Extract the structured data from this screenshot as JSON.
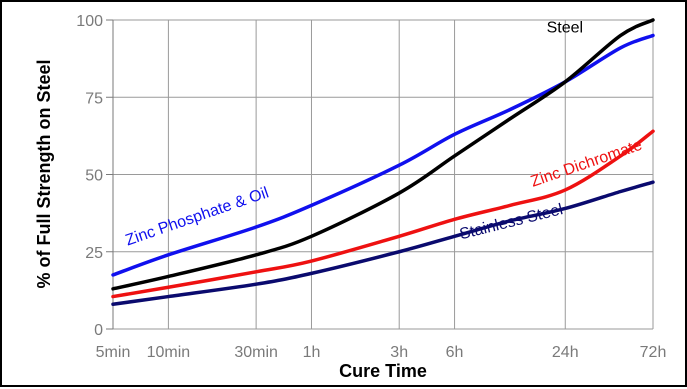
{
  "chart_data": {
    "type": "line",
    "title": "",
    "xlabel": "Cure Time",
    "ylabel": "% of Full Strength on Steel",
    "x_scale": "log",
    "x_unit": "hours",
    "x_ticks": [
      {
        "label": "5min",
        "value": 0.0833
      },
      {
        "label": "10min",
        "value": 0.1667
      },
      {
        "label": "30min",
        "value": 0.5
      },
      {
        "label": "1h",
        "value": 1
      },
      {
        "label": "3h",
        "value": 3
      },
      {
        "label": "6h",
        "value": 6
      },
      {
        "label": "24h",
        "value": 24
      },
      {
        "label": "72h",
        "value": 72
      }
    ],
    "xlim": [
      0.0833,
      72
    ],
    "y_ticks": [
      0,
      25,
      50,
      75,
      100
    ],
    "ylim": [
      0,
      100
    ],
    "grid": true,
    "legend": "none",
    "series": [
      {
        "name": "Steel",
        "color": "#000000",
        "points": [
          [
            0.0833,
            13
          ],
          [
            0.1667,
            17
          ],
          [
            0.5,
            24
          ],
          [
            1,
            30
          ],
          [
            3,
            44
          ],
          [
            6,
            56
          ],
          [
            12,
            68
          ],
          [
            24,
            80
          ],
          [
            48,
            95
          ],
          [
            72,
            100
          ]
        ]
      },
      {
        "name": "Zinc Phosphate & Oil",
        "color": "#1010ee",
        "points": [
          [
            0.0833,
            17.5
          ],
          [
            0.1667,
            24
          ],
          [
            0.5,
            33
          ],
          [
            1,
            40
          ],
          [
            3,
            53
          ],
          [
            6,
            63
          ],
          [
            12,
            71
          ],
          [
            24,
            80
          ],
          [
            48,
            91
          ],
          [
            72,
            95
          ]
        ]
      },
      {
        "name": "Zinc Dichromate",
        "color": "#ee1111",
        "points": [
          [
            0.0833,
            10.5
          ],
          [
            0.1667,
            13.5
          ],
          [
            0.5,
            18.5
          ],
          [
            1,
            22
          ],
          [
            3,
            30
          ],
          [
            6,
            35.5
          ],
          [
            12,
            40
          ],
          [
            24,
            45
          ],
          [
            48,
            56
          ],
          [
            72,
            64
          ]
        ]
      },
      {
        "name": "Stainless Steel",
        "color": "#0a0a6e",
        "points": [
          [
            0.0833,
            8
          ],
          [
            0.1667,
            10.5
          ],
          [
            0.5,
            14.5
          ],
          [
            1,
            18
          ],
          [
            3,
            25
          ],
          [
            6,
            30
          ],
          [
            12,
            35
          ],
          [
            24,
            39
          ],
          [
            48,
            44.5
          ],
          [
            72,
            47.5
          ]
        ]
      }
    ],
    "series_label_layout": [
      {
        "text": "Steel",
        "at": [
          19,
          96
        ],
        "rotate": 0
      },
      {
        "text": "Zinc Phosphate & Oil",
        "at": [
          0.1,
          27
        ],
        "rotate": -19
      },
      {
        "text": "Zinc Dichromate",
        "at": [
          16,
          46
        ],
        "rotate": -19
      },
      {
        "text": "Stainless Steel",
        "at": [
          6.5,
          29
        ],
        "rotate": -14
      }
    ]
  }
}
